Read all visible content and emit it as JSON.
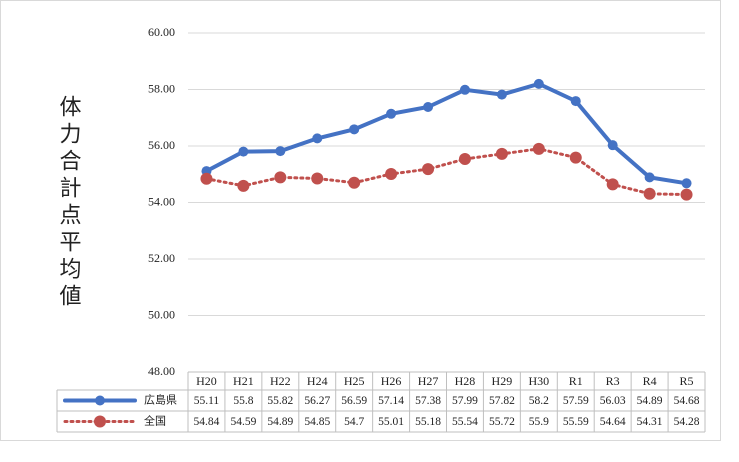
{
  "chart_data": {
    "type": "line",
    "y_label": "体力合計点平均値",
    "categories": [
      "H20",
      "H21",
      "H22",
      "H24",
      "H25",
      "H26",
      "H27",
      "H28",
      "H29",
      "H30",
      "R1",
      "R3",
      "R4",
      "R5"
    ],
    "series": [
      {
        "name": "広島県",
        "color": "#4472c4",
        "style": "solid",
        "values": [
          55.11,
          55.8,
          55.82,
          56.27,
          56.59,
          57.14,
          57.38,
          57.99,
          57.82,
          58.2,
          57.59,
          56.03,
          54.89,
          54.68
        ]
      },
      {
        "name": "全国",
        "color": "#c0504d",
        "style": "dotted",
        "values": [
          54.84,
          54.59,
          54.89,
          54.85,
          54.7,
          55.01,
          55.18,
          55.54,
          55.72,
          55.9,
          55.59,
          54.64,
          54.31,
          54.28
        ]
      }
    ],
    "ylim": [
      48,
      60
    ],
    "yticks": [
      {
        "value": 48,
        "label": "48.00"
      },
      {
        "value": 50,
        "label": "50.00"
      },
      {
        "value": 52,
        "label": "52.00"
      },
      {
        "value": 54,
        "label": "54.00"
      },
      {
        "value": 56,
        "label": "56.00"
      },
      {
        "value": 58,
        "label": "58.00"
      },
      {
        "value": 60,
        "label": "60.00"
      }
    ],
    "grid": true,
    "data_table": true
  }
}
